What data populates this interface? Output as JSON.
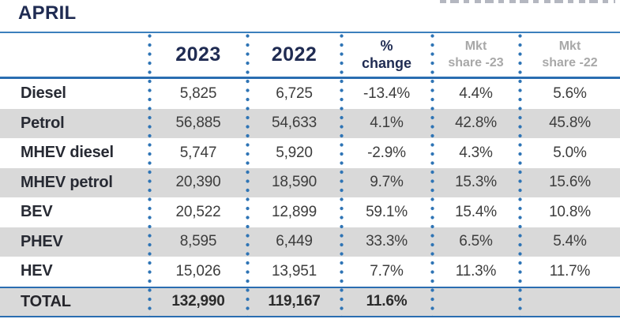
{
  "title": "APRIL",
  "colors": {
    "accent_blue_line": "#2e74b5",
    "navy_text": "#1f2b52",
    "row_stripe_gray": "#d9d9d9",
    "muted_header_gray": "#a8a8a8",
    "value_text": "#3d3d3d"
  },
  "header": {
    "y2023": "2023",
    "y2022": "2022",
    "pct_line1": "%",
    "pct_line2": "change",
    "mkt23_line1": "Mkt",
    "mkt23_line2": "share -23",
    "mkt22_line1": "Mkt",
    "mkt22_line2": "share -22"
  },
  "chart_data": {
    "type": "table",
    "title": "APRIL",
    "columns": [
      "",
      "2023",
      "2022",
      "% change",
      "Mkt share -23",
      "Mkt share -22"
    ],
    "rows": [
      [
        "Diesel",
        "5,825",
        "6,725",
        "-13.4%",
        "4.4%",
        "5.6%"
      ],
      [
        "Petrol",
        "56,885",
        "54,633",
        "4.1%",
        "42.8%",
        "45.8%"
      ],
      [
        "MHEV diesel",
        "5,747",
        "5,920",
        "-2.9%",
        "4.3%",
        "5.0%"
      ],
      [
        "MHEV petrol",
        "20,390",
        "18,590",
        "9.7%",
        "15.3%",
        "15.6%"
      ],
      [
        "BEV",
        "20,522",
        "12,899",
        "59.1%",
        "15.4%",
        "10.8%"
      ],
      [
        "PHEV",
        "8,595",
        "6,449",
        "33.3%",
        "6.5%",
        "5.4%"
      ],
      [
        "HEV",
        "15,026",
        "13,951",
        "7.7%",
        "11.3%",
        "11.7%"
      ],
      [
        "TOTAL",
        "132,990",
        "119,167",
        "11.6%",
        "",
        ""
      ]
    ],
    "layout": {
      "striped_rows": true,
      "column_separators": "dotted-blue",
      "total_row_highlighted": true
    }
  }
}
